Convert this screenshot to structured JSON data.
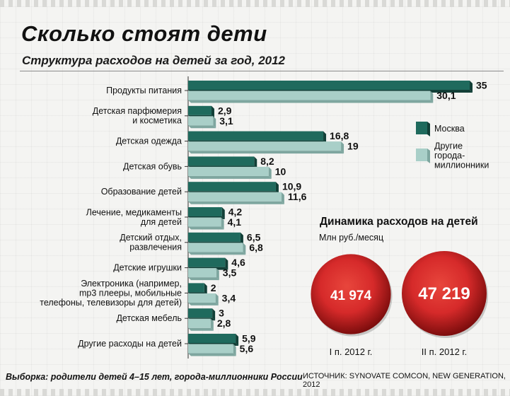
{
  "header": {
    "title": "Сколько стоят дети",
    "subtitle": "Структура расходов на детей за год, 2012"
  },
  "colors": {
    "moscow": "#1f6a5d",
    "moscow_dark": "#123f37",
    "other": "#a9cfc8",
    "other_dark": "#7ea69f",
    "circle": "#d62a2a",
    "circle_dark": "#7d0d0d"
  },
  "chart_data": {
    "type": "bar",
    "orientation": "horizontal",
    "title": "Структура расходов на детей за год, 2012",
    "categories": [
      [
        "Продукты питания"
      ],
      [
        "Детская парфюмерия",
        "и косметика"
      ],
      [
        "Детская одежда"
      ],
      [
        "Детская обувь"
      ],
      [
        "Образование детей"
      ],
      [
        "Лечение, медикаменты",
        "для детей"
      ],
      [
        "Детский отдых,",
        "развлечения"
      ],
      [
        "Детские игрушки"
      ],
      [
        "Электроника (например,",
        "mp3 плееры, мобильные",
        "телефоны, телевизоры для детей)"
      ],
      [
        "Детская мебель"
      ],
      [
        "Другие расходы на детей"
      ]
    ],
    "series": [
      {
        "name": "Москва",
        "values": [
          35,
          2.9,
          16.8,
          8.2,
          10.9,
          4.2,
          6.5,
          4.6,
          2,
          3,
          5.9
        ],
        "labels": [
          "35",
          "2,9",
          "16,8",
          "8,2",
          "10,9",
          "4,2",
          "6,5",
          "4,6",
          "2",
          "3",
          "5,9"
        ]
      },
      {
        "name": "Другие города-миллионники",
        "values": [
          30.1,
          3.1,
          19,
          10,
          11.6,
          4.1,
          6.8,
          3.5,
          3.4,
          2.8,
          5.6
        ],
        "labels": [
          "30,1",
          "3,1",
          "19",
          "10",
          "11,6",
          "4,1",
          "6,8",
          "3,5",
          "3,4",
          "2,8",
          "5,6"
        ]
      }
    ],
    "xlim": [
      0,
      35
    ],
    "grid": false,
    "legend": {
      "position": "right",
      "items": [
        [
          "Москва"
        ],
        [
          "Другие",
          "города-",
          "миллионники"
        ]
      ]
    }
  },
  "dynamics": {
    "title": "Динамика расходов на детей",
    "unit": "Млн руб./месяц",
    "items": [
      {
        "value": "41 974",
        "label": "I п. 2012 г.",
        "amount": 41974
      },
      {
        "value": "47 219",
        "label": "II п. 2012 г.",
        "amount": 47219
      }
    ]
  },
  "footer": {
    "left": "Выборка: родители детей 4–15 лет, города-миллионники России",
    "right": "ИСТОЧНИК: SYNOVATE COMCON, NEW GENERATION, 2012"
  }
}
